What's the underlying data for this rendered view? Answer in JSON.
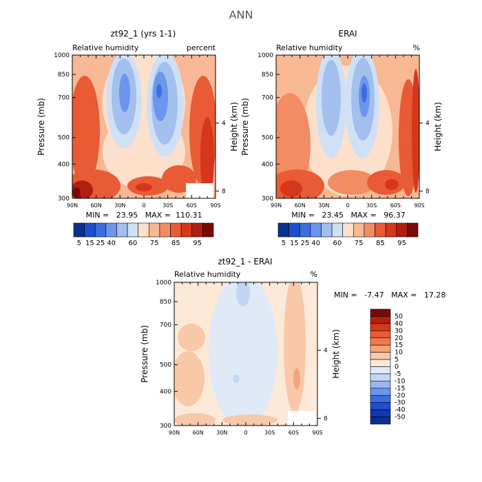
{
  "page_title": "ANN",
  "colors": {
    "model_obs_scale": [
      "#08308c",
      "#1a4fd0",
      "#3c6ee0",
      "#6a96ec",
      "#a2bfee",
      "#cfe0f5",
      "#fde0cc",
      "#f8b894",
      "#f28c64",
      "#e85b35",
      "#d6361c",
      "#b41e12",
      "#7a0a0a"
    ],
    "diff_scale": [
      "#08308c",
      "#1236b4",
      "#1f4fd6",
      "#3c6ee0",
      "#6a96ec",
      "#98b8ef",
      "#c2d6f4",
      "#dfe9f8",
      "#fde9d8",
      "#f9c8a8",
      "#f5a47a",
      "#ef7c4e",
      "#e85b35",
      "#d6361c",
      "#b41e12",
      "#7a0a0a"
    ]
  },
  "chart_data": [
    {
      "id": "model",
      "type": "heatmap",
      "title": "zt92_1 (yrs 1-1)",
      "field_label": "Relative humidity",
      "units": "percent",
      "ylabel": "Pressure (mb)",
      "y2label": "Height (km)",
      "x_ticks": [
        "90N",
        "60N",
        "30N",
        "0",
        "30S",
        "60S",
        "90S"
      ],
      "y_ticks": [
        "300",
        "400",
        "500",
        "700",
        "850",
        "1000"
      ],
      "y2_ticks": [
        "8",
        "4"
      ],
      "ylim": [
        1000,
        300
      ],
      "xlim": [
        90,
        -90
      ],
      "stats": "MIN =   23.95   MAX =  110.31",
      "colorbar_labels": [
        "5",
        "15",
        "25",
        "40",
        "60",
        "75",
        "85",
        "95"
      ]
    },
    {
      "id": "obs",
      "type": "heatmap",
      "title": "ERAI",
      "field_label": "Relative humidity",
      "units": "%",
      "ylabel": "Pressure (mb)",
      "y2label": "Height (km)",
      "x_ticks": [
        "90N",
        "60N",
        "30N",
        "0",
        "30S",
        "60S",
        "90S"
      ],
      "y_ticks": [
        "300",
        "400",
        "500",
        "700",
        "850",
        "1000"
      ],
      "y2_ticks": [
        "8",
        "4"
      ],
      "ylim": [
        1000,
        300
      ],
      "xlim": [
        90,
        -90
      ],
      "stats": "MIN =   23.45   MAX =   96.37",
      "colorbar_labels": [
        "5",
        "15",
        "25",
        "40",
        "60",
        "75",
        "85",
        "95"
      ]
    },
    {
      "id": "diff",
      "type": "heatmap",
      "title": "zt92_1 - ERAI",
      "field_label": "Relative humidity",
      "units": "%",
      "ylabel": "Pressure (mb)",
      "y2label": "Height (km)",
      "x_ticks": [
        "90N",
        "60N",
        "30N",
        "0",
        "30S",
        "60S",
        "90S"
      ],
      "y_ticks": [
        "300",
        "400",
        "500",
        "700",
        "850",
        "1000"
      ],
      "y2_ticks": [
        "8",
        "4"
      ],
      "ylim": [
        1000,
        300
      ],
      "xlim": [
        90,
        -90
      ],
      "stats": "MIN =   -7.47   MAX =   17.28",
      "colorbar_labels": [
        "50",
        "40",
        "30",
        "20",
        "15",
        "10",
        "5",
        "0",
        "-5",
        "-10",
        "-15",
        "-20",
        "-30",
        "-40",
        "-50"
      ]
    }
  ]
}
